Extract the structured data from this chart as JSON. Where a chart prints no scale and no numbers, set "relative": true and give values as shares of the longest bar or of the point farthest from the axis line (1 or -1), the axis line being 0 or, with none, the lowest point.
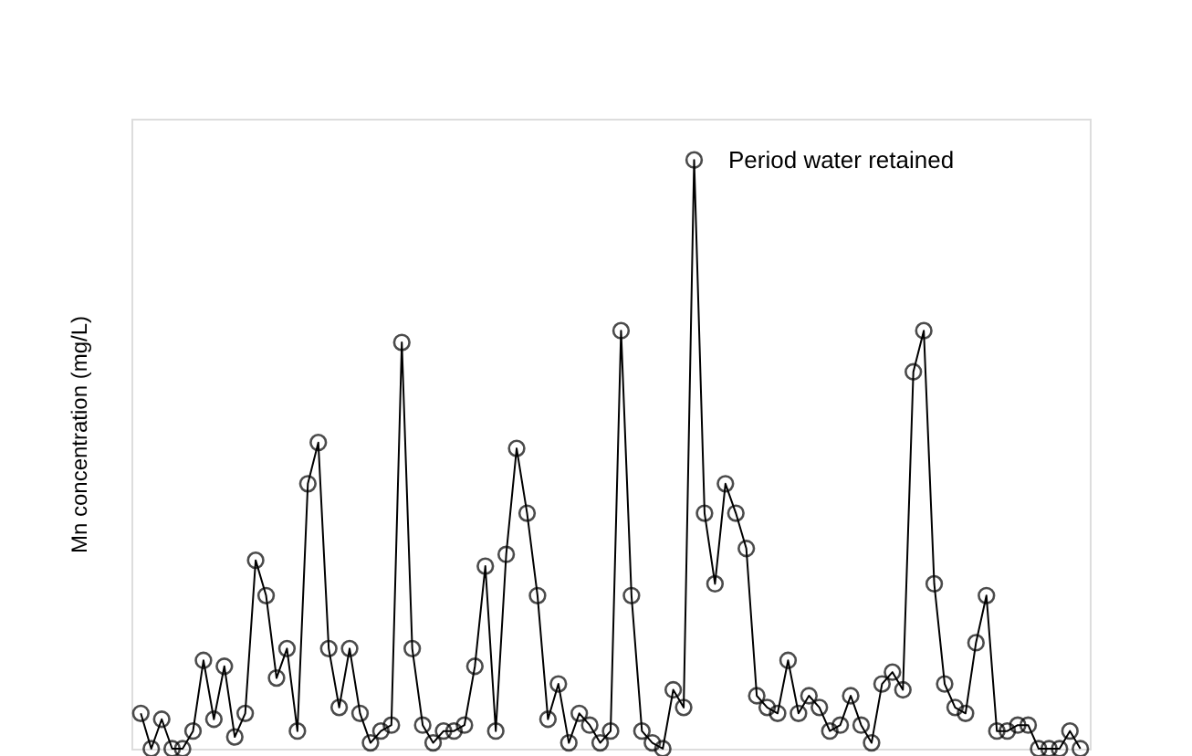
{
  "chart_data": {
    "type": "line",
    "relative": true,
    "ylabel": "Mn concentration (mg/L)",
    "annotations": [
      "Period water retained"
    ],
    "marker": "circle",
    "line_style": "solid",
    "grid": false,
    "tick_labels": false,
    "categories": [
      null,
      null,
      null,
      null,
      null,
      null,
      null,
      null,
      null,
      null,
      null,
      null,
      null,
      null,
      null,
      null,
      null,
      null,
      null,
      null,
      null,
      null,
      null,
      null,
      null,
      null,
      null,
      null,
      null,
      null,
      null,
      null,
      null,
      null,
      null,
      null,
      null,
      null,
      null,
      null,
      null,
      null,
      null,
      null,
      null,
      null,
      null,
      null,
      null,
      null,
      null,
      null,
      null,
      null,
      null,
      null,
      null,
      null,
      null,
      null,
      null,
      null,
      null,
      null,
      null,
      null,
      null,
      null,
      null,
      null,
      null,
      null,
      null,
      null,
      null,
      null,
      null,
      null,
      null,
      null,
      null,
      null,
      null,
      null,
      null,
      null,
      null,
      null,
      null,
      null,
      null
    ],
    "series": [
      {
        "color": "#000000",
        "values": [
          0.06,
          0,
          0.05,
          0,
          0,
          0.03,
          0.15,
          0.05,
          0.14,
          0.02,
          0.06,
          0.32,
          0.26,
          0.12,
          0.17,
          0.03,
          0.45,
          0.52,
          0.17,
          0.07,
          0.17,
          0.06,
          0.01,
          0.03,
          0.04,
          0.69,
          0.17,
          0.04,
          0.01,
          0.03,
          0.03,
          0.04,
          0.14,
          0.31,
          0.03,
          0.33,
          0.51,
          0.4,
          0.26,
          0.05,
          0.11,
          0.01,
          0.06,
          0.04,
          0.01,
          0.03,
          0.71,
          0.26,
          0.03,
          0.01,
          0,
          0.1,
          0.07,
          1,
          0.4,
          0.28,
          0.45,
          0.4,
          0.34,
          0.09,
          0.07,
          0.06,
          0.15,
          0.06,
          0.09,
          0.07,
          0.03,
          0.04,
          0.09,
          0.04,
          0.01,
          0.11,
          0.13,
          0.1,
          0.64,
          0.71,
          0.28,
          0.11,
          0.07,
          0.06,
          0.18,
          0.26,
          0.03,
          0.03,
          0.04,
          0.04,
          0,
          0,
          0,
          0.03,
          0
        ]
      }
    ]
  }
}
